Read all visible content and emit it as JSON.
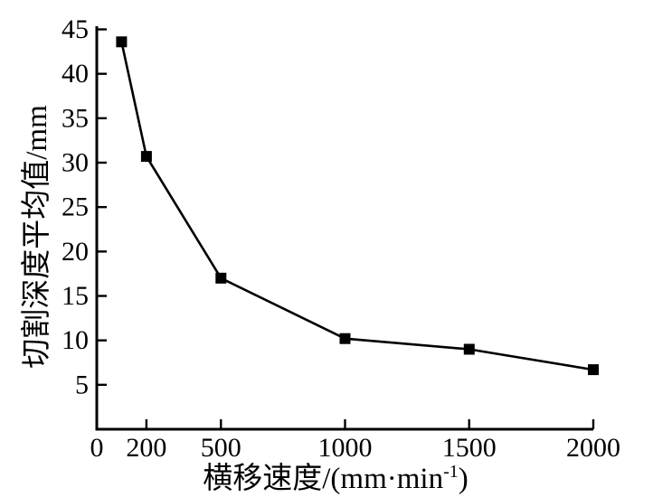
{
  "chart_data": {
    "type": "line",
    "title": "",
    "xlabel": {
      "text": "横移速度/(mm·min⁻¹)",
      "prefix": "横移速度/(mm·min",
      "sup": "-1",
      "suffix": ")"
    },
    "ylabel": "切割深度平均值/mm",
    "x": [
      100,
      200,
      500,
      1000,
      1500,
      2000
    ],
    "y": [
      43.6,
      30.7,
      17.0,
      10.2,
      9.0,
      6.7
    ],
    "xlim": [
      0,
      2000
    ],
    "ylim": [
      0,
      45
    ],
    "x_ticks": [
      0,
      200,
      500,
      1000,
      1500,
      2000
    ],
    "x_tick_labels": [
      "0",
      "200",
      "500",
      "1000",
      "1500",
      "2000"
    ],
    "y_ticks": [
      5,
      10,
      15,
      20,
      25,
      30,
      35,
      40,
      45
    ],
    "y_tick_labels": [
      "5",
      "10",
      "15",
      "20",
      "25",
      "30",
      "35",
      "40",
      "45"
    ],
    "marker": "filled-square",
    "grid": false,
    "legend": null,
    "colors": {
      "line": "#000000",
      "marker": "#000000",
      "axis": "#000000",
      "background": "#ffffff"
    }
  }
}
